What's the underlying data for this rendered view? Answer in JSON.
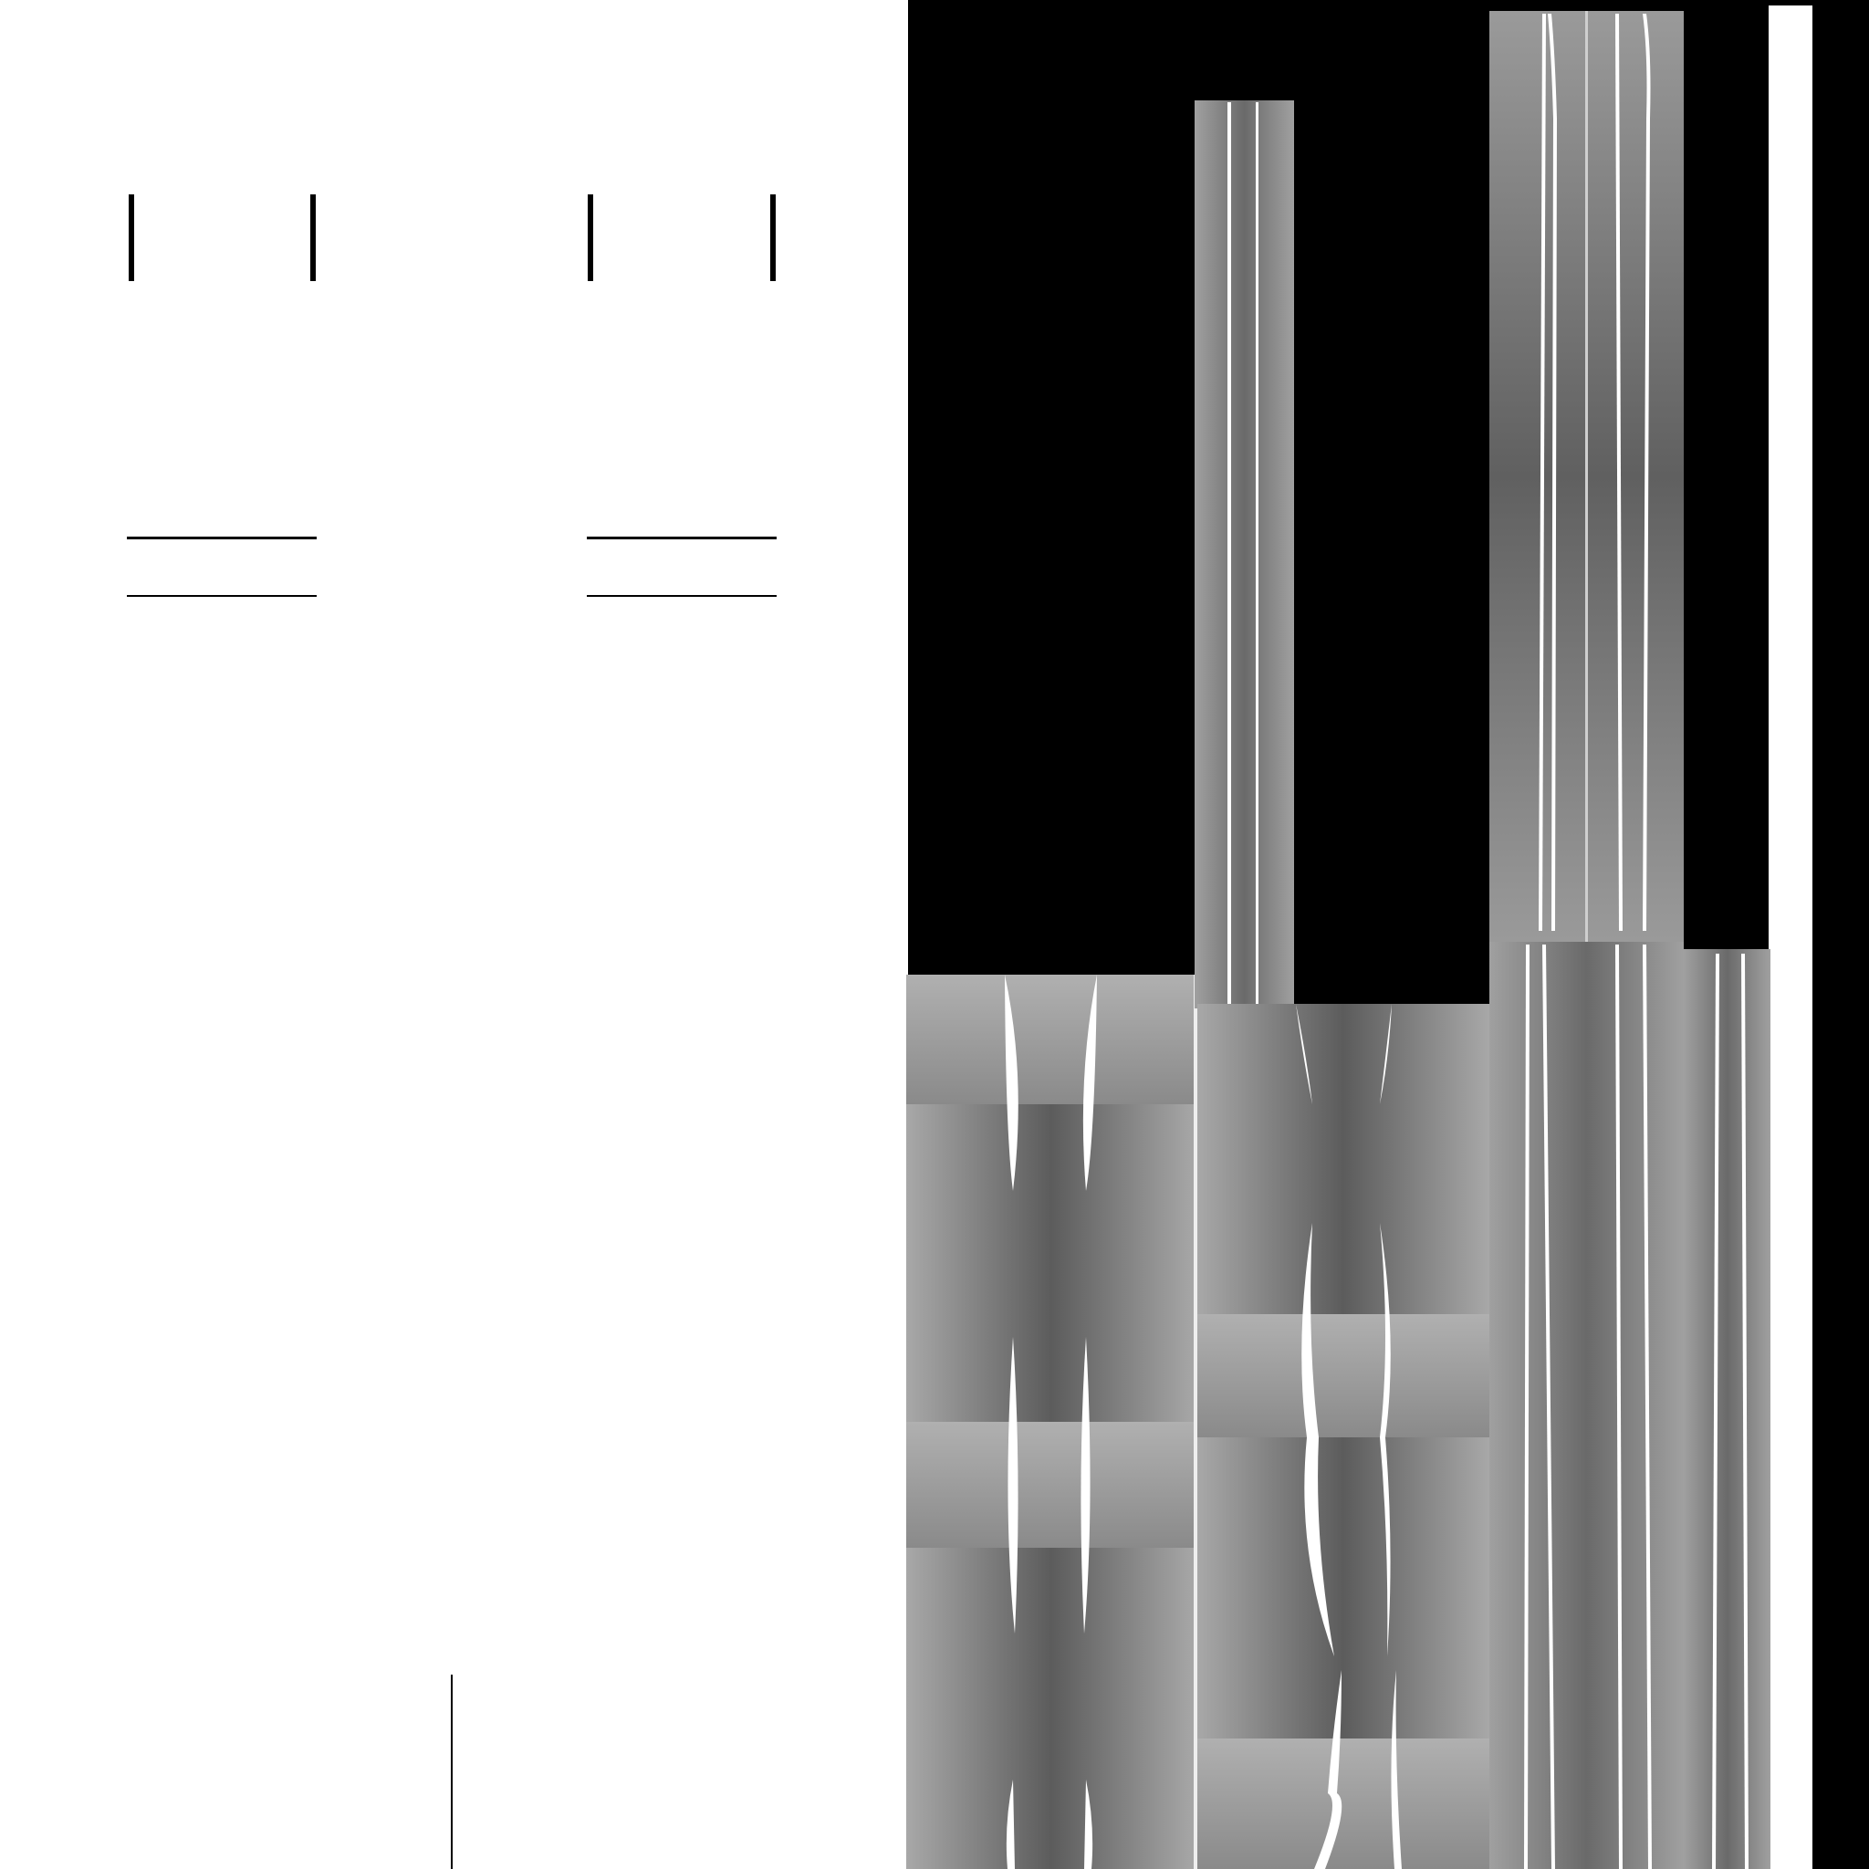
{
  "canvas": {
    "background": "#ffffff",
    "panel_background": "#000000",
    "strip_light": "#a6a6a6",
    "strip_dark": "#5e5e5e",
    "highlight": "#ffffff",
    "line_color": "#000000"
  },
  "layers": [
    "registration-marks",
    "texture-atlas-panel",
    "gradient-strips"
  ],
  "content_text": []
}
